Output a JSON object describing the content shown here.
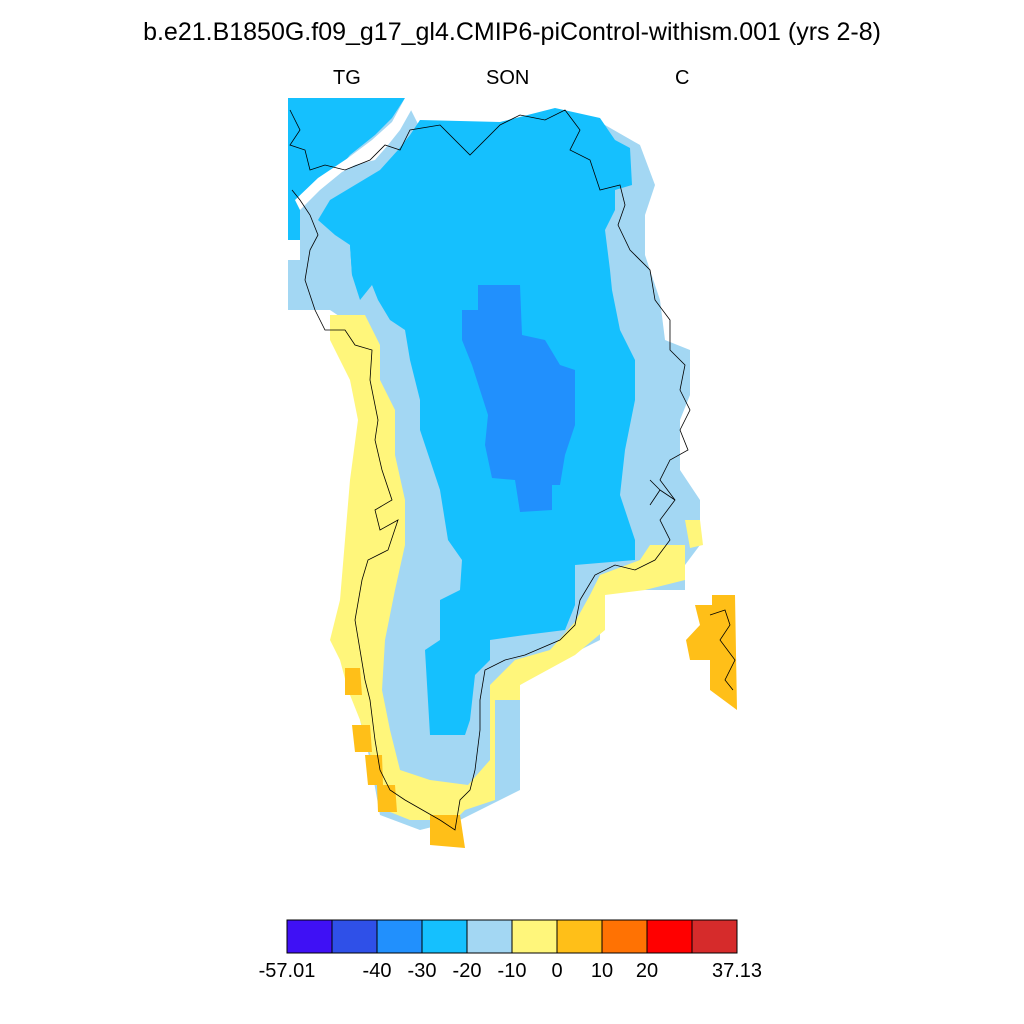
{
  "title": "b.e21.B1850G.f09_g17_gl4.CMIP6-piControl-withism.001 (yrs 2-8)",
  "subtitles": {
    "left": "TG",
    "center": "SON",
    "right": "C"
  },
  "colors": {
    "c1": "#3f10f5",
    "c2": "#2f50e8",
    "c3": "#2190fd",
    "c4": "#15c0fe",
    "c5": "#a3d7f3",
    "c6": "#fff67b",
    "c7": "#ffbf18",
    "c8": "#ff7203",
    "c9": "#ff0000",
    "c10": "#d62b2b"
  },
  "colorbar": {
    "labels": [
      "-57.01",
      "-40",
      "-30",
      "-20",
      "-10",
      "0",
      "10",
      "20",
      "37.13"
    ],
    "bins": [
      "c1",
      "c2",
      "c3",
      "c4",
      "c5",
      "c6",
      "c7",
      "c8",
      "c9",
      "c10"
    ]
  }
}
